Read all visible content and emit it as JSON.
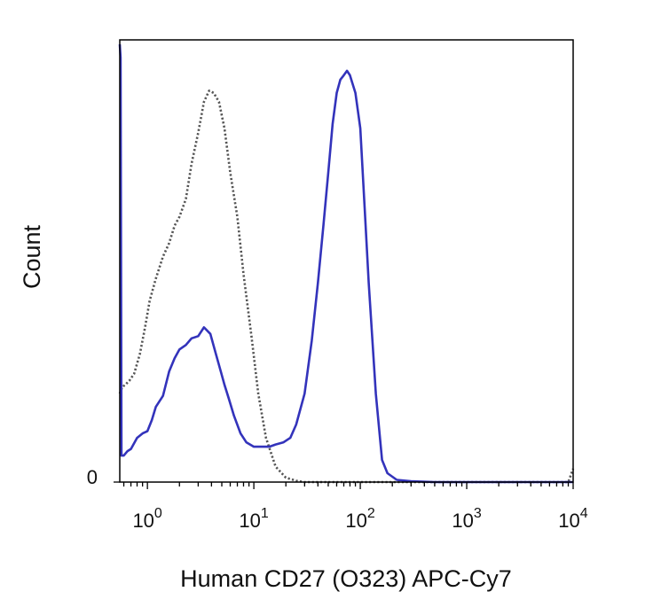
{
  "chart_data": {
    "type": "line",
    "title": "",
    "xlabel": "Human CD27 (O323) APC-Cy7",
    "ylabel": "Count",
    "x_scale": "log",
    "xlim": [
      0.55,
      10000
    ],
    "ylim": [
      0,
      100
    ],
    "x_ticks": [
      {
        "base": "10",
        "exp": "0",
        "value": 1
      },
      {
        "base": "10",
        "exp": "1",
        "value": 10
      },
      {
        "base": "10",
        "exp": "2",
        "value": 100
      },
      {
        "base": "10",
        "exp": "3",
        "value": 1000
      },
      {
        "base": "10",
        "exp": "4",
        "value": 10000
      }
    ],
    "y_ticks": [
      {
        "label": "0",
        "value": 0
      }
    ],
    "grid": false,
    "legend": "none",
    "series": [
      {
        "style": "dotted",
        "color": "#555555",
        "x": [
          0.55,
          0.58,
          0.62,
          0.68,
          0.75,
          0.85,
          0.95,
          1.05,
          1.2,
          1.4,
          1.6,
          1.8,
          2.0,
          2.3,
          2.6,
          3.0,
          3.4,
          3.8,
          4.2,
          4.7,
          5.3,
          6.0,
          7.0,
          8.0,
          9.5,
          11,
          13,
          16,
          20,
          25,
          30,
          40,
          60,
          100,
          300,
          1000,
          3000,
          9000,
          10000
        ],
        "y": [
          20,
          21.5,
          22,
          23,
          24.5,
          29,
          35,
          41,
          46,
          51,
          54,
          58,
          60,
          64,
          72,
          79,
          86,
          88.5,
          88,
          86,
          80,
          70,
          60,
          47,
          33,
          20,
          10,
          3.5,
          1,
          0.3,
          0,
          0,
          0,
          0,
          0,
          0,
          0,
          0,
          3
        ]
      },
      {
        "style": "solid",
        "color": "#3333bb",
        "x": [
          0.55,
          0.56,
          0.57,
          0.6,
          0.65,
          0.7,
          0.8,
          0.9,
          1.0,
          1.1,
          1.2,
          1.4,
          1.6,
          1.8,
          2.0,
          2.3,
          2.6,
          3.0,
          3.4,
          3.9,
          4.4,
          4.9,
          5.3,
          5.8,
          6.5,
          7.5,
          8.5,
          10,
          12,
          14,
          16,
          19,
          22,
          25,
          30,
          35,
          40,
          45,
          50,
          55,
          60,
          65,
          70,
          75,
          80,
          90,
          100,
          110,
          120,
          140,
          160,
          180,
          220,
          300,
          500,
          1000,
          3000,
          10000
        ],
        "y": [
          99,
          96,
          6,
          6,
          7,
          7.5,
          10,
          11,
          11.5,
          14,
          17,
          19.5,
          25,
          28,
          30,
          31,
          32.5,
          33,
          35,
          33.5,
          29,
          25,
          22,
          19,
          15,
          11,
          9,
          8,
          8,
          8,
          8.5,
          9,
          10,
          13,
          20,
          32,
          45,
          58,
          70,
          81,
          88,
          91,
          92,
          93,
          92,
          88,
          80,
          62,
          45,
          20,
          5,
          2,
          0.5,
          0.2,
          0,
          0,
          0,
          0
        ]
      }
    ]
  }
}
